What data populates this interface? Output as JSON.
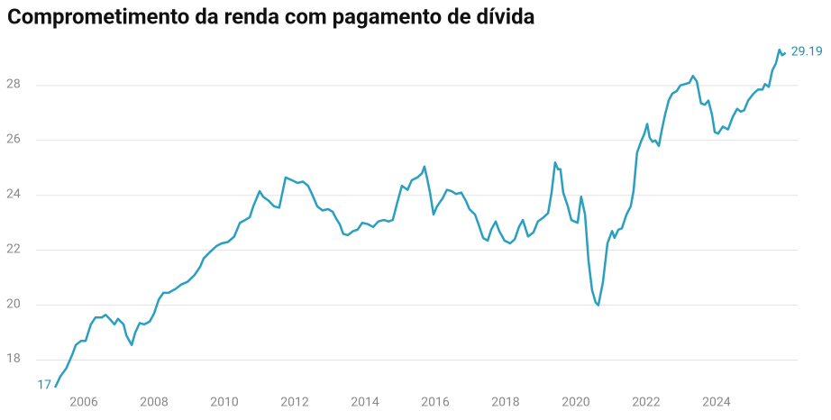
{
  "chart_data": {
    "type": "line",
    "title": "Comprometimento da renda com pagamento de dívida",
    "x": [
      2005.18,
      2005.33,
      2005.5,
      2005.67,
      2005.77,
      2005.92,
      2006.05,
      2006.2,
      2006.33,
      2006.51,
      2006.62,
      2006.77,
      2006.87,
      2006.97,
      2007.13,
      2007.21,
      2007.36,
      2007.46,
      2007.59,
      2007.72,
      2007.87,
      2008.0,
      2008.13,
      2008.26,
      2008.41,
      2008.62,
      2008.77,
      2008.95,
      2009.15,
      2009.31,
      2009.41,
      2009.56,
      2009.77,
      2009.92,
      2010.1,
      2010.28,
      2010.44,
      2010.59,
      2010.72,
      2010.82,
      2011.0,
      2011.1,
      2011.26,
      2011.41,
      2011.56,
      2011.74,
      2011.92,
      2012.08,
      2012.23,
      2012.38,
      2012.49,
      2012.64,
      2012.79,
      2012.95,
      2013.08,
      2013.18,
      2013.28,
      2013.38,
      2013.51,
      2013.67,
      2013.79,
      2013.92,
      2014.08,
      2014.23,
      2014.38,
      2014.54,
      2014.67,
      2014.79,
      2014.92,
      2015.05,
      2015.21,
      2015.33,
      2015.49,
      2015.62,
      2015.69,
      2015.77,
      2015.85,
      2015.95,
      2016.05,
      2016.21,
      2016.33,
      2016.46,
      2016.59,
      2016.74,
      2016.87,
      2016.97,
      2017.13,
      2017.23,
      2017.36,
      2017.49,
      2017.59,
      2017.72,
      2017.82,
      2017.97,
      2018.13,
      2018.26,
      2018.38,
      2018.49,
      2018.64,
      2018.79,
      2018.92,
      2019.08,
      2019.21,
      2019.31,
      2019.41,
      2019.49,
      2019.56,
      2019.64,
      2019.77,
      2019.87,
      2020.05,
      2020.15,
      2020.26,
      2020.36,
      2020.46,
      2020.56,
      2020.64,
      2020.77,
      2020.9,
      2021.03,
      2021.1,
      2021.21,
      2021.31,
      2021.44,
      2021.56,
      2021.64,
      2021.74,
      2021.85,
      2021.95,
      2022.03,
      2022.1,
      2022.18,
      2022.26,
      2022.36,
      2022.44,
      2022.54,
      2022.64,
      2022.74,
      2022.87,
      2022.97,
      2023.1,
      2023.23,
      2023.33,
      2023.44,
      2023.56,
      2023.67,
      2023.77,
      2023.87,
      2023.95,
      2024.05,
      2024.18,
      2024.33,
      2024.46,
      2024.59,
      2024.69,
      2024.79,
      2024.9,
      2025.05,
      2025.18,
      2025.31,
      2025.38,
      2025.49,
      2025.59,
      2025.69,
      2025.79,
      2025.87,
      2025.97
    ],
    "values": [
      17,
      17.4,
      17.7,
      18.2,
      18.55,
      18.7,
      18.7,
      19.3,
      19.55,
      19.55,
      19.65,
      19.45,
      19.3,
      19.5,
      19.3,
      18.9,
      18.55,
      19.0,
      19.35,
      19.3,
      19.4,
      19.7,
      20.2,
      20.45,
      20.45,
      20.6,
      20.75,
      20.85,
      21.1,
      21.4,
      21.7,
      21.9,
      22.15,
      22.25,
      22.3,
      22.5,
      23.0,
      23.1,
      23.2,
      23.6,
      24.15,
      23.95,
      23.8,
      23.6,
      23.55,
      24.65,
      24.55,
      24.45,
      24.5,
      24.35,
      24.05,
      23.6,
      23.45,
      23.5,
      23.4,
      23.15,
      22.95,
      22.6,
      22.55,
      22.7,
      22.75,
      23.0,
      22.95,
      22.85,
      23.05,
      23.1,
      23.05,
      23.1,
      23.75,
      24.35,
      24.2,
      24.55,
      24.65,
      24.8,
      25.05,
      24.6,
      24.1,
      23.3,
      23.6,
      23.9,
      24.2,
      24.15,
      24.05,
      24.1,
      23.8,
      23.5,
      23.3,
      22.95,
      22.45,
      22.35,
      22.75,
      23.05,
      22.7,
      22.35,
      22.25,
      22.4,
      22.85,
      23.1,
      22.5,
      22.65,
      23.05,
      23.2,
      23.35,
      24.1,
      25.2,
      24.95,
      24.95,
      24.1,
      23.6,
      23.1,
      23.0,
      23.95,
      23.3,
      21.6,
      20.55,
      20.1,
      20.0,
      20.85,
      22.25,
      22.7,
      22.45,
      22.75,
      22.8,
      23.3,
      23.6,
      24.15,
      25.55,
      25.95,
      26.25,
      26.6,
      26.1,
      25.95,
      26.0,
      25.8,
      26.35,
      26.95,
      27.45,
      27.7,
      27.8,
      28.0,
      28.05,
      28.1,
      28.35,
      28.15,
      27.35,
      27.3,
      27.45,
      26.95,
      26.3,
      26.25,
      26.5,
      26.4,
      26.85,
      27.15,
      27.05,
      27.1,
      27.45,
      27.7,
      27.85,
      27.85,
      28.05,
      27.95,
      28.55,
      28.8,
      29.3,
      29.1,
      29.19
    ],
    "color": "#2a9fc0",
    "xlim": [
      2004.64,
      2026.31
    ],
    "xticks": [
      2006,
      2008,
      2010,
      2012,
      2014,
      2016,
      2018,
      2020,
      2022,
      2024
    ],
    "ylim": [
      17,
      29.8
    ],
    "yticks": [
      18,
      20,
      22,
      24,
      26,
      28
    ],
    "grid": true
  }
}
